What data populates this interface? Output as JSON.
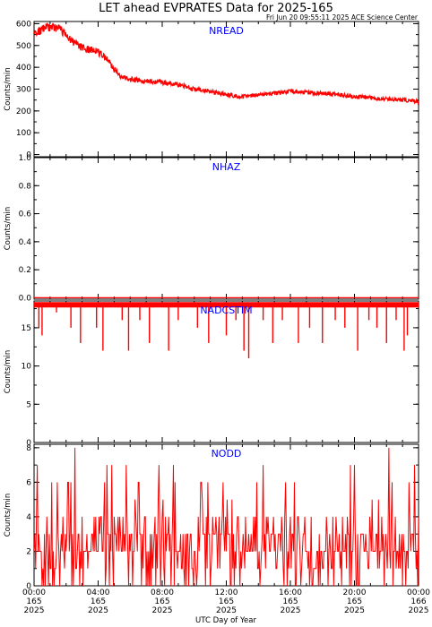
{
  "header": {
    "title": "LET ahead EVPRATES Data for 2025-165",
    "timestamp": "Fri Jun 20 09:55:11 2025 ACE Science Center"
  },
  "colors": {
    "series": "#ff0000",
    "panel_title": "#0000ff",
    "axes": "#000000"
  },
  "chart_data": {
    "type": "line",
    "xlabel": "UTC Day of Year",
    "xlim": [
      0,
      24
    ],
    "x_ticks": [
      {
        "value": 0,
        "time": "00:00",
        "doy": "165",
        "year": "2025"
      },
      {
        "value": 4,
        "time": "04:00",
        "doy": "165",
        "year": "2025"
      },
      {
        "value": 8,
        "time": "08:00",
        "doy": "165",
        "year": "2025"
      },
      {
        "value": 12,
        "time": "12:00",
        "doy": "165",
        "year": "2025"
      },
      {
        "value": 16,
        "time": "16:00",
        "doy": "165",
        "year": "2025"
      },
      {
        "value": 20,
        "time": "20:00",
        "doy": "165",
        "year": "2025"
      },
      {
        "value": 24,
        "time": "00:00",
        "doy": "166",
        "year": "2025"
      }
    ],
    "panels": [
      {
        "title": "NREAD",
        "ylabel": "Counts/min",
        "ylim": [
          -10,
          610
        ],
        "yticks": [
          0,
          100,
          200,
          300,
          400,
          500,
          600
        ],
        "ytick_labels": [
          "0",
          "100",
          "200",
          "300",
          "400",
          "500",
          "600"
        ],
        "x": [
          0,
          0.5,
          1,
          1.5,
          2,
          2.5,
          3,
          3.5,
          4,
          4.5,
          5,
          5.5,
          6,
          7,
          8,
          9,
          10,
          11,
          12,
          13,
          14,
          15,
          16,
          17,
          18,
          19,
          20,
          21,
          22,
          23,
          24
        ],
        "y": [
          550,
          575,
          585,
          580,
          550,
          510,
          490,
          480,
          470,
          445,
          390,
          355,
          345,
          335,
          330,
          320,
          300,
          290,
          275,
          265,
          275,
          280,
          290,
          285,
          280,
          275,
          265,
          260,
          255,
          250,
          243
        ]
      },
      {
        "title": "NHAZ",
        "ylabel": "Counts/min",
        "ylim": [
          -0.01,
          1.0
        ],
        "yticks": [
          0,
          0.2,
          0.4,
          0.6,
          0.8,
          1.0
        ],
        "ytick_labels": [
          "0.0",
          "0.2",
          "0.4",
          "0.6",
          "0.8",
          "1.0"
        ],
        "x": [
          0,
          24
        ],
        "y": [
          0,
          0
        ]
      },
      {
        "title": "NADCSTIM",
        "ylabel": "Counts/min",
        "ylim": [
          0,
          18.5
        ],
        "yticks": [
          0,
          5,
          10,
          15
        ],
        "ytick_labels": [
          "0",
          "5",
          "10",
          "15"
        ],
        "baseline": 18,
        "dips": [
          [
            0.3,
            15
          ],
          [
            0.5,
            14
          ],
          [
            1.4,
            17
          ],
          [
            2.3,
            15
          ],
          [
            2.9,
            13
          ],
          [
            3.9,
            15
          ],
          [
            4.3,
            12
          ],
          [
            5.5,
            16
          ],
          [
            5.9,
            12
          ],
          [
            6.6,
            16
          ],
          [
            7.2,
            13
          ],
          [
            8.4,
            12
          ],
          [
            9.0,
            16
          ],
          [
            10.2,
            15
          ],
          [
            10.9,
            13
          ],
          [
            12.0,
            14
          ],
          [
            12.6,
            16
          ],
          [
            13.1,
            12
          ],
          [
            13.4,
            11
          ],
          [
            14.3,
            16
          ],
          [
            14.9,
            13
          ],
          [
            15.5,
            16
          ],
          [
            16.5,
            13
          ],
          [
            17.2,
            15
          ],
          [
            18.0,
            13
          ],
          [
            18.8,
            16
          ],
          [
            19.4,
            15
          ],
          [
            20.2,
            12
          ],
          [
            20.9,
            16
          ],
          [
            21.4,
            15
          ],
          [
            22.0,
            13
          ],
          [
            22.6,
            16
          ],
          [
            23.1,
            12
          ],
          [
            23.3,
            14
          ]
        ]
      },
      {
        "title": "NODD",
        "ylabel": "Counts/min",
        "ylim": [
          0,
          8.2
        ],
        "yticks": [
          0,
          2,
          4,
          6,
          8
        ],
        "ytick_labels": [
          "0",
          "2",
          "4",
          "6",
          "8"
        ],
        "values_min": 0,
        "values_max": 8,
        "typical_range": [
          1,
          4
        ]
      }
    ]
  }
}
